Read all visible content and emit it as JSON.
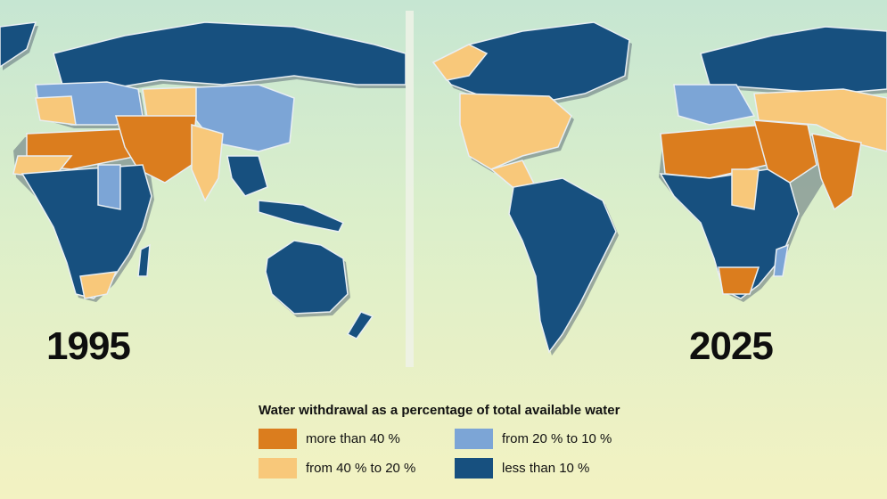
{
  "colors": {
    "more_than_40": "#db7d1e",
    "from_40_to_20": "#f8c87a",
    "from_20_to_10": "#7ca5d6",
    "less_than_10": "#17507f",
    "border": "#e8eef2",
    "shadow": "#5f6f7a"
  },
  "maps": [
    {
      "year": "1995"
    },
    {
      "year": "2025"
    }
  ],
  "legend": {
    "title": "Water withdrawal as a percentage of total available water",
    "items": [
      {
        "label": "more than 40 %",
        "color": "#db7d1e"
      },
      {
        "label": "from 20 % to 10 %",
        "color": "#7ca5d6"
      },
      {
        "label": "from 40 % to 20 %",
        "color": "#f8c87a"
      },
      {
        "label": "less than 10 %",
        "color": "#17507f"
      }
    ]
  }
}
